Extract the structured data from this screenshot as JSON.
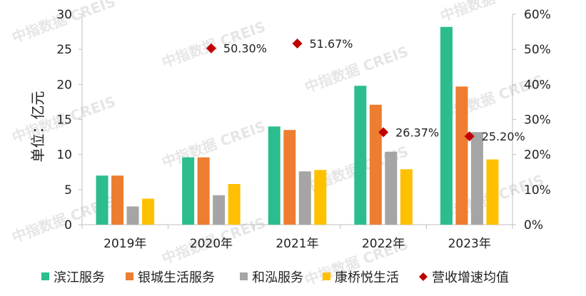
{
  "chart_data": {
    "type": "bar",
    "categories": [
      "2019年",
      "2020年",
      "2021年",
      "2022年",
      "2023年"
    ],
    "ylabel": "单位：亿元",
    "ylim": [
      0,
      30
    ],
    "yticks": [
      "0",
      "5",
      "10",
      "15",
      "20",
      "25",
      "30"
    ],
    "y2lim": [
      0,
      0.6
    ],
    "y2ticks": [
      "0%",
      "10%",
      "20%",
      "30%",
      "40%",
      "50%",
      "60%"
    ],
    "series": [
      {
        "name": "滨江服务",
        "color": "#2bbd8e",
        "values": [
          7.0,
          9.6,
          14.0,
          19.8,
          28.2
        ]
      },
      {
        "name": "银城生活服务",
        "color": "#ed7d31",
        "values": [
          7.0,
          9.6,
          13.5,
          17.1,
          19.7
        ]
      },
      {
        "name": "和泓服务",
        "color": "#a5a5a5",
        "values": [
          2.6,
          4.2,
          7.6,
          10.4,
          13.2
        ]
      },
      {
        "name": "康桥悦生活",
        "color": "#ffc000",
        "values": [
          3.7,
          5.8,
          7.8,
          7.9,
          9.3
        ]
      }
    ],
    "line_series": {
      "name": "营收增速均值",
      "color": "#c00000",
      "axis": "right",
      "points": [
        {
          "category": "2020年",
          "value": 0.503,
          "label": "50.30%"
        },
        {
          "category": "2021年",
          "value": 0.5167,
          "label": "51.67%"
        },
        {
          "category": "2022年",
          "value": 0.2637,
          "label": "26.37%"
        },
        {
          "category": "2023年",
          "value": 0.252,
          "label": "25.20%"
        }
      ]
    },
    "legend": {
      "position": "bottom"
    },
    "grid": false
  },
  "watermark": "中指数据 CREIS"
}
